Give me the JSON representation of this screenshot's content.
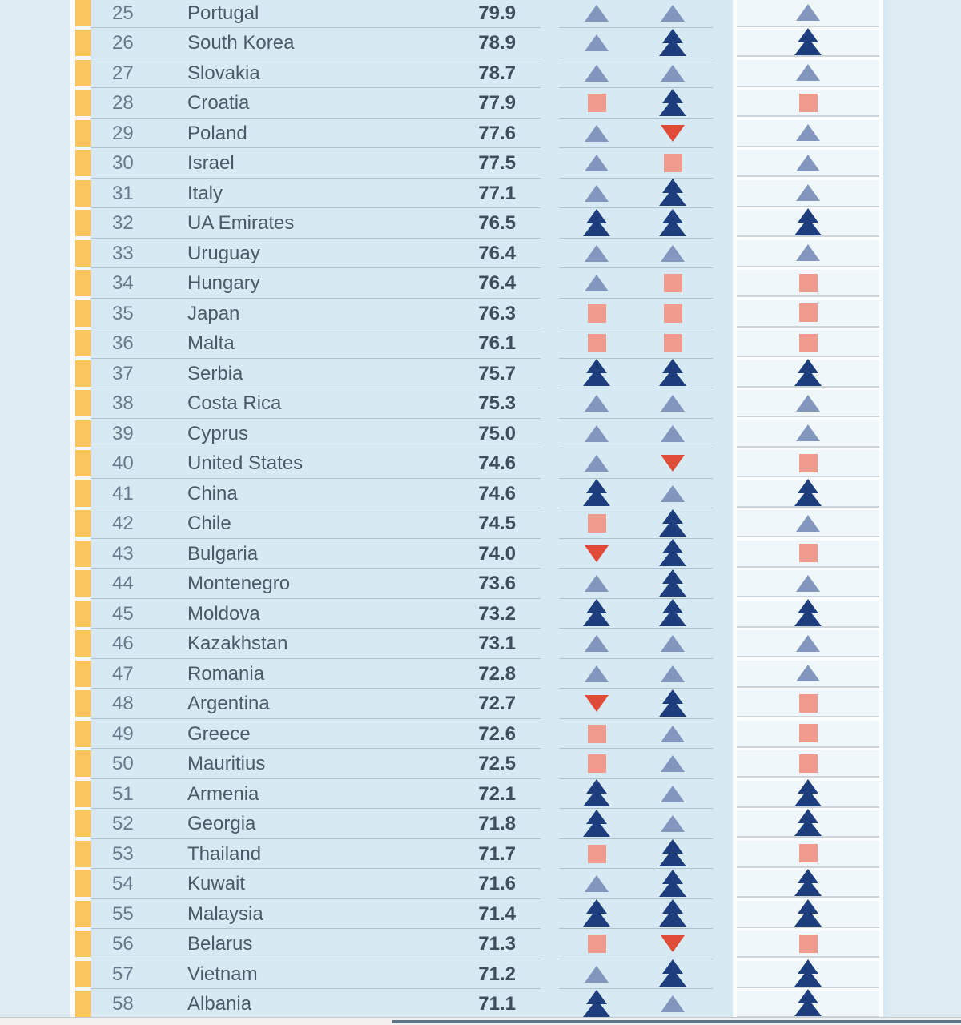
{
  "accent": {
    "row_marker_color": "#f8c55f"
  },
  "icons": {
    "up": {
      "icon_name": "trend-up-icon",
      "shape": "triangle-up",
      "color": "#8296be"
    },
    "double": {
      "icon_name": "trend-up-strong-icon",
      "shape": "double-triangle-up",
      "color": "#1e3d7c"
    },
    "steady": {
      "icon_name": "trend-steady-icon",
      "shape": "square",
      "color": "#f19a8e"
    },
    "down": {
      "icon_name": "trend-down-icon",
      "shape": "triangle-down",
      "color": "#e04b38"
    }
  },
  "table": {
    "rows": [
      {
        "rank": "25",
        "country": "Portugal",
        "score": "79.9",
        "indicators": [
          "up",
          "up",
          "up"
        ]
      },
      {
        "rank": "26",
        "country": "South Korea",
        "score": "78.9",
        "indicators": [
          "up",
          "double",
          "double"
        ]
      },
      {
        "rank": "27",
        "country": "Slovakia",
        "score": "78.7",
        "indicators": [
          "up",
          "up",
          "up"
        ]
      },
      {
        "rank": "28",
        "country": "Croatia",
        "score": "77.9",
        "indicators": [
          "steady",
          "double",
          "steady"
        ]
      },
      {
        "rank": "29",
        "country": "Poland",
        "score": "77.6",
        "indicators": [
          "up",
          "down",
          "up"
        ]
      },
      {
        "rank": "30",
        "country": "Israel",
        "score": "77.5",
        "indicators": [
          "up",
          "steady",
          "up"
        ]
      },
      {
        "rank": "31",
        "country": "Italy",
        "score": "77.1",
        "indicators": [
          "up",
          "double",
          "up"
        ]
      },
      {
        "rank": "32",
        "country": "UA Emirates",
        "score": "76.5",
        "indicators": [
          "double",
          "double",
          "double"
        ]
      },
      {
        "rank": "33",
        "country": "Uruguay",
        "score": "76.4",
        "indicators": [
          "up",
          "up",
          "up"
        ]
      },
      {
        "rank": "34",
        "country": "Hungary",
        "score": "76.4",
        "indicators": [
          "up",
          "steady",
          "steady"
        ]
      },
      {
        "rank": "35",
        "country": "Japan",
        "score": "76.3",
        "indicators": [
          "steady",
          "steady",
          "steady"
        ]
      },
      {
        "rank": "36",
        "country": "Malta",
        "score": "76.1",
        "indicators": [
          "steady",
          "steady",
          "steady"
        ]
      },
      {
        "rank": "37",
        "country": "Serbia",
        "score": "75.7",
        "indicators": [
          "double",
          "double",
          "double"
        ]
      },
      {
        "rank": "38",
        "country": "Costa Rica",
        "score": "75.3",
        "indicators": [
          "up",
          "up",
          "up"
        ]
      },
      {
        "rank": "39",
        "country": "Cyprus",
        "score": "75.0",
        "indicators": [
          "up",
          "up",
          "up"
        ]
      },
      {
        "rank": "40",
        "country": "United States",
        "score": "74.6",
        "indicators": [
          "up",
          "down",
          "steady"
        ]
      },
      {
        "rank": "41",
        "country": "China",
        "score": "74.6",
        "indicators": [
          "double",
          "up",
          "double"
        ]
      },
      {
        "rank": "42",
        "country": "Chile",
        "score": "74.5",
        "indicators": [
          "steady",
          "double",
          "up"
        ]
      },
      {
        "rank": "43",
        "country": "Bulgaria",
        "score": "74.0",
        "indicators": [
          "down",
          "double",
          "steady"
        ]
      },
      {
        "rank": "44",
        "country": "Montenegro",
        "score": "73.6",
        "indicators": [
          "up",
          "double",
          "up"
        ]
      },
      {
        "rank": "45",
        "country": "Moldova",
        "score": "73.2",
        "indicators": [
          "double",
          "double",
          "double"
        ]
      },
      {
        "rank": "46",
        "country": "Kazakhstan",
        "score": "73.1",
        "indicators": [
          "up",
          "up",
          "up"
        ]
      },
      {
        "rank": "47",
        "country": "Romania",
        "score": "72.8",
        "indicators": [
          "up",
          "up",
          "up"
        ]
      },
      {
        "rank": "48",
        "country": "Argentina",
        "score": "72.7",
        "indicators": [
          "down",
          "double",
          "steady"
        ]
      },
      {
        "rank": "49",
        "country": "Greece",
        "score": "72.6",
        "indicators": [
          "steady",
          "up",
          "steady"
        ]
      },
      {
        "rank": "50",
        "country": "Mauritius",
        "score": "72.5",
        "indicators": [
          "steady",
          "up",
          "steady"
        ]
      },
      {
        "rank": "51",
        "country": "Armenia",
        "score": "72.1",
        "indicators": [
          "double",
          "up",
          "double"
        ]
      },
      {
        "rank": "52",
        "country": "Georgia",
        "score": "71.8",
        "indicators": [
          "double",
          "up",
          "double"
        ]
      },
      {
        "rank": "53",
        "country": "Thailand",
        "score": "71.7",
        "indicators": [
          "steady",
          "double",
          "steady"
        ]
      },
      {
        "rank": "54",
        "country": "Kuwait",
        "score": "71.6",
        "indicators": [
          "up",
          "double",
          "double"
        ]
      },
      {
        "rank": "55",
        "country": "Malaysia",
        "score": "71.4",
        "indicators": [
          "double",
          "double",
          "double"
        ]
      },
      {
        "rank": "56",
        "country": "Belarus",
        "score": "71.3",
        "indicators": [
          "steady",
          "down",
          "steady"
        ]
      },
      {
        "rank": "57",
        "country": "Vietnam",
        "score": "71.2",
        "indicators": [
          "up",
          "double",
          "double"
        ]
      },
      {
        "rank": "58",
        "country": "Albania",
        "score": "71.1",
        "indicators": [
          "double",
          "up",
          "double"
        ]
      }
    ]
  }
}
